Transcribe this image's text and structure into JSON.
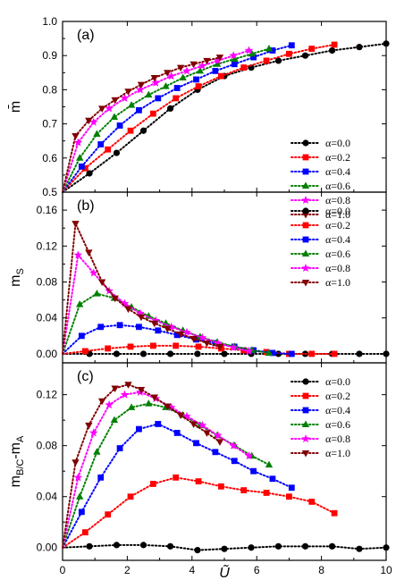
{
  "chart_data": [
    {
      "type": "line",
      "panel_label": "(a)",
      "ylabel": "m̄",
      "xlabel": "",
      "xlim": [
        0,
        10
      ],
      "ylim": [
        0.5,
        1.0
      ],
      "xticks": [
        "0",
        "2",
        "4",
        "6",
        "8",
        "10"
      ],
      "yticks": [
        "0.5",
        "0.6",
        "0.7",
        "0.8",
        "0.9",
        "1.0"
      ],
      "legend_position": "right",
      "series": [
        {
          "name": "α=0.0",
          "color": "#000000",
          "marker": "circle",
          "x": [
            0,
            0.83,
            1.67,
            2.5,
            3.33,
            4.17,
            5.0,
            5.83,
            6.67,
            7.5,
            8.33,
            9.17,
            10.0
          ],
          "y": [
            0.5,
            0.555,
            0.615,
            0.68,
            0.745,
            0.8,
            0.84,
            0.865,
            0.885,
            0.9,
            0.915,
            0.925,
            0.935
          ]
        },
        {
          "name": "α=0.2",
          "color": "#ff0000",
          "marker": "square",
          "x": [
            0,
            0.7,
            1.4,
            2.1,
            2.8,
            3.5,
            4.2,
            4.9,
            5.6,
            6.3,
            7.0,
            7.7,
            8.4
          ],
          "y": [
            0.5,
            0.57,
            0.625,
            0.68,
            0.73,
            0.775,
            0.81,
            0.84,
            0.865,
            0.885,
            0.905,
            0.92,
            0.932
          ]
        },
        {
          "name": "α=0.4",
          "color": "#0000ff",
          "marker": "square",
          "x": [
            0,
            0.59,
            1.18,
            1.77,
            2.36,
            2.95,
            3.54,
            4.13,
            4.72,
            5.31,
            5.9,
            6.49,
            7.08
          ],
          "y": [
            0.5,
            0.575,
            0.64,
            0.695,
            0.74,
            0.775,
            0.805,
            0.83,
            0.855,
            0.875,
            0.895,
            0.915,
            0.93
          ]
        },
        {
          "name": "α=0.6",
          "color": "#008000",
          "marker": "triangle",
          "x": [
            0,
            0.53,
            1.06,
            1.6,
            2.13,
            2.66,
            3.19,
            3.72,
            4.25,
            4.78,
            5.32,
            5.85,
            6.38
          ],
          "y": [
            0.5,
            0.6,
            0.67,
            0.72,
            0.755,
            0.785,
            0.81,
            0.835,
            0.855,
            0.875,
            0.89,
            0.905,
            0.92
          ]
        },
        {
          "name": "α=0.8",
          "color": "#ff00ff",
          "marker": "star",
          "x": [
            0,
            0.48,
            0.96,
            1.44,
            1.92,
            2.4,
            2.88,
            3.36,
            3.84,
            4.32,
            4.8,
            5.28,
            5.76
          ],
          "y": [
            0.5,
            0.645,
            0.705,
            0.745,
            0.775,
            0.8,
            0.82,
            0.84,
            0.855,
            0.87,
            0.885,
            0.9,
            0.915
          ]
        },
        {
          "name": "α=1.0",
          "color": "#800000",
          "marker": "triangle-down",
          "x": [
            0,
            0.4,
            0.81,
            1.22,
            1.62,
            2.03,
            2.43,
            2.84,
            3.24,
            3.65,
            4.05,
            4.46,
            4.86
          ],
          "y": [
            0.5,
            0.665,
            0.71,
            0.745,
            0.77,
            0.795,
            0.815,
            0.835,
            0.85,
            0.865,
            0.875,
            0.885,
            0.895
          ]
        }
      ]
    },
    {
      "type": "line",
      "panel_label": "(b)",
      "ylabel": "m_S",
      "xlabel": "",
      "xlim": [
        0,
        10
      ],
      "ylim": [
        -0.01,
        0.18
      ],
      "xticks": [
        "0",
        "2",
        "4",
        "6",
        "8",
        "10"
      ],
      "yticks": [
        "0.00",
        "0.04",
        "0.08",
        "0.12",
        "0.16"
      ],
      "legend_position": "top-right",
      "series": [
        {
          "name": "α=0.0",
          "color": "#000000",
          "marker": "circle",
          "x": [
            0,
            0.83,
            1.67,
            2.5,
            3.33,
            4.17,
            5.0,
            5.83,
            6.67,
            7.5,
            8.33,
            9.17,
            10.0
          ],
          "y": [
            0,
            0.0,
            0.0,
            0.0,
            0.0,
            0.0,
            0.0,
            0.0,
            0.0,
            0.0,
            0.0,
            0.0,
            0.0
          ]
        },
        {
          "name": "α=0.2",
          "color": "#ff0000",
          "marker": "square",
          "x": [
            0,
            0.7,
            1.4,
            2.1,
            2.8,
            3.5,
            4.2,
            4.9,
            5.6,
            6.3,
            7.0,
            7.7,
            8.4
          ],
          "y": [
            0,
            0.003,
            0.006,
            0.008,
            0.009,
            0.009,
            0.008,
            0.006,
            0.004,
            0.002,
            0.0,
            0.0,
            0.0
          ]
        },
        {
          "name": "α=0.4",
          "color": "#0000ff",
          "marker": "square",
          "x": [
            0,
            0.59,
            1.18,
            1.77,
            2.36,
            2.95,
            3.54,
            4.13,
            4.72,
            5.31,
            5.9,
            6.49,
            7.08
          ],
          "y": [
            0,
            0.02,
            0.03,
            0.032,
            0.03,
            0.026,
            0.021,
            0.016,
            0.012,
            0.008,
            0.004,
            0.001,
            0.0
          ]
        },
        {
          "name": "α=0.6",
          "color": "#008000",
          "marker": "triangle",
          "x": [
            0,
            0.53,
            1.06,
            1.6,
            2.13,
            2.66,
            3.19,
            3.72,
            4.25,
            4.78,
            5.32,
            5.85,
            6.38
          ],
          "y": [
            0,
            0.055,
            0.067,
            0.062,
            0.052,
            0.042,
            0.034,
            0.026,
            0.019,
            0.013,
            0.008,
            0.004,
            0.001
          ]
        },
        {
          "name": "α=0.8",
          "color": "#ff00ff",
          "marker": "star",
          "x": [
            0,
            0.48,
            0.96,
            1.44,
            1.92,
            2.4,
            2.88,
            3.36,
            3.84,
            4.32,
            4.8,
            5.28,
            5.76
          ],
          "y": [
            0,
            0.11,
            0.09,
            0.07,
            0.056,
            0.045,
            0.037,
            0.03,
            0.024,
            0.018,
            0.012,
            0.007,
            0.003
          ]
        },
        {
          "name": "α=1.0",
          "color": "#800000",
          "marker": "triangle-down",
          "x": [
            0,
            0.4,
            0.81,
            1.22,
            1.62,
            2.03,
            2.43,
            2.84,
            3.24,
            3.65,
            4.05,
            4.46,
            4.86
          ],
          "y": [
            0,
            0.145,
            0.113,
            0.08,
            0.062,
            0.05,
            0.041,
            0.034,
            0.028,
            0.022,
            0.017,
            0.012,
            0.008
          ]
        }
      ]
    },
    {
      "type": "line",
      "panel_label": "(c)",
      "ylabel": "m_B/C-m_A",
      "xlabel": "Ũ",
      "xlim": [
        0,
        10
      ],
      "ylim": [
        -0.01,
        0.145
      ],
      "xticks": [
        "0",
        "2",
        "4",
        "6",
        "8",
        "10"
      ],
      "yticks": [
        "0.00",
        "0.04",
        "0.08",
        "0.12"
      ],
      "legend_position": "top-right",
      "series": [
        {
          "name": "α=0.0",
          "color": "#000000",
          "marker": "circle",
          "x": [
            0,
            0.83,
            1.67,
            2.5,
            3.33,
            4.17,
            5.0,
            5.83,
            6.67,
            7.5,
            8.33,
            9.17,
            10.0
          ],
          "y": [
            0,
            0.001,
            0.002,
            0.002,
            0.001,
            -0.002,
            -0.001,
            0.0,
            0.001,
            0.001,
            0.001,
            -0.001,
            0.0
          ]
        },
        {
          "name": "α=0.2",
          "color": "#ff0000",
          "marker": "square",
          "x": [
            0,
            0.7,
            1.4,
            2.1,
            2.8,
            3.5,
            4.2,
            4.9,
            5.6,
            6.3,
            7.0,
            7.7,
            8.4
          ],
          "y": [
            0,
            0.012,
            0.026,
            0.04,
            0.05,
            0.055,
            0.052,
            0.048,
            0.045,
            0.043,
            0.04,
            0.036,
            0.027
          ]
        },
        {
          "name": "α=0.4",
          "color": "#0000ff",
          "marker": "square",
          "x": [
            0,
            0.59,
            1.18,
            1.77,
            2.36,
            2.95,
            3.54,
            4.13,
            4.72,
            5.31,
            5.9,
            6.49,
            7.08
          ],
          "y": [
            0,
            0.028,
            0.055,
            0.078,
            0.093,
            0.097,
            0.09,
            0.082,
            0.075,
            0.068,
            0.06,
            0.054,
            0.047
          ]
        },
        {
          "name": "α=0.6",
          "color": "#008000",
          "marker": "triangle",
          "x": [
            0,
            0.53,
            1.06,
            1.6,
            2.13,
            2.66,
            3.19,
            3.72,
            4.25,
            4.78,
            5.32,
            5.85,
            6.38
          ],
          "y": [
            0,
            0.04,
            0.075,
            0.1,
            0.11,
            0.113,
            0.11,
            0.104,
            0.096,
            0.088,
            0.08,
            0.072,
            0.065
          ]
        },
        {
          "name": "α=0.8",
          "color": "#ff00ff",
          "marker": "star",
          "x": [
            0,
            0.48,
            0.96,
            1.44,
            1.92,
            2.4,
            2.88,
            3.36,
            3.84,
            4.32,
            4.8,
            5.28,
            5.76
          ],
          "y": [
            0,
            0.055,
            0.09,
            0.112,
            0.12,
            0.122,
            0.117,
            0.11,
            0.103,
            0.096,
            0.088,
            0.08,
            0.072
          ]
        },
        {
          "name": "α=1.0",
          "color": "#800000",
          "marker": "triangle-down",
          "x": [
            0,
            0.4,
            0.81,
            1.22,
            1.62,
            2.03,
            2.43,
            2.84,
            3.24,
            3.65,
            4.05,
            4.46,
            4.86
          ],
          "y": [
            0,
            0.067,
            0.096,
            0.115,
            0.125,
            0.128,
            0.124,
            0.118,
            0.111,
            0.104,
            0.097,
            0.09,
            0.083
          ]
        }
      ]
    }
  ]
}
